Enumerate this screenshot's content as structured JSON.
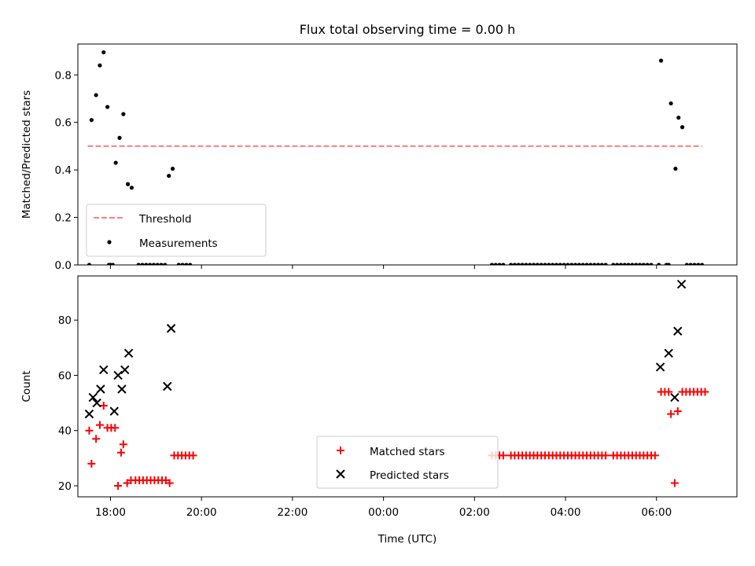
{
  "chart_data": [
    {
      "type": "scatter",
      "title": "Flux total observing time = 0.00 h",
      "xlabel": "",
      "ylabel": "Matched/Predicted stars",
      "xlim": [
        "17:17",
        "07:46"
      ],
      "ylim": [
        0,
        0.93
      ],
      "yticks": [
        0.0,
        0.2,
        0.4,
        0.6,
        0.8
      ],
      "ytick_labels": [
        "0.0",
        "0.2",
        "0.4",
        "0.6",
        "0.8"
      ],
      "legend": {
        "placement": "lower-left",
        "entries": [
          "Threshold",
          "Measurements"
        ]
      },
      "threshold": {
        "name": "Threshold",
        "y": 0.5,
        "x_start": "17:30",
        "x_end": "07:00",
        "color": "#ff7f7f"
      },
      "series": [
        {
          "name": "Measurements",
          "color": "#000000",
          "marker": "dot",
          "points": [
            [
              "17:32",
              0.0
            ],
            [
              "17:35",
              0.61
            ],
            [
              "17:41",
              0.715
            ],
            [
              "17:46",
              0.84
            ],
            [
              "17:51",
              0.895
            ],
            [
              "17:56",
              0.665
            ],
            [
              "17:58",
              0.0
            ],
            [
              "18:00",
              0.0
            ],
            [
              "18:03",
              0.0
            ],
            [
              "18:07",
              0.43
            ],
            [
              "18:12",
              0.535
            ],
            [
              "18:17",
              0.635
            ],
            [
              "18:23",
              0.34
            ],
            [
              "18:28",
              0.325
            ],
            [
              "18:37",
              0.0
            ],
            [
              "18:42",
              0.0
            ],
            [
              "18:47",
              0.0
            ],
            [
              "18:52",
              0.0
            ],
            [
              "18:57",
              0.0
            ],
            [
              "19:02",
              0.0
            ],
            [
              "19:07",
              0.0
            ],
            [
              "19:12",
              0.0
            ],
            [
              "19:17",
              0.375
            ],
            [
              "19:22",
              0.405
            ],
            [
              "19:30",
              0.0
            ],
            [
              "19:35",
              0.0
            ],
            [
              "19:40",
              0.0
            ],
            [
              "19:45",
              0.0
            ],
            [
              "02:23",
              0.0
            ],
            [
              "02:28",
              0.0
            ],
            [
              "02:33",
              0.0
            ],
            [
              "02:38",
              0.0
            ],
            [
              "02:48",
              0.0
            ],
            [
              "02:53",
              0.0
            ],
            [
              "02:58",
              0.0
            ],
            [
              "03:03",
              0.0
            ],
            [
              "03:08",
              0.0
            ],
            [
              "03:13",
              0.0
            ],
            [
              "03:18",
              0.0
            ],
            [
              "03:23",
              0.0
            ],
            [
              "03:28",
              0.0
            ],
            [
              "03:33",
              0.0
            ],
            [
              "03:38",
              0.0
            ],
            [
              "03:43",
              0.0
            ],
            [
              "03:48",
              0.0
            ],
            [
              "03:53",
              0.0
            ],
            [
              "03:58",
              0.0
            ],
            [
              "04:03",
              0.0
            ],
            [
              "04:08",
              0.0
            ],
            [
              "04:13",
              0.0
            ],
            [
              "04:18",
              0.0
            ],
            [
              "04:23",
              0.0
            ],
            [
              "04:28",
              0.0
            ],
            [
              "04:33",
              0.0
            ],
            [
              "04:38",
              0.0
            ],
            [
              "04:43",
              0.0
            ],
            [
              "04:48",
              0.0
            ],
            [
              "04:53",
              0.0
            ],
            [
              "05:03",
              0.0
            ],
            [
              "05:08",
              0.0
            ],
            [
              "05:13",
              0.0
            ],
            [
              "05:18",
              0.0
            ],
            [
              "05:23",
              0.0
            ],
            [
              "05:28",
              0.0
            ],
            [
              "05:33",
              0.0
            ],
            [
              "05:38",
              0.0
            ],
            [
              "05:43",
              0.0
            ],
            [
              "05:48",
              0.0
            ],
            [
              "05:53",
              0.0
            ],
            [
              "06:03",
              0.0
            ],
            [
              "06:06",
              0.86
            ],
            [
              "06:13",
              0.0
            ],
            [
              "06:16",
              0.0
            ],
            [
              "06:19",
              0.68
            ],
            [
              "06:25",
              0.405
            ],
            [
              "06:29",
              0.62
            ],
            [
              "06:34",
              0.58
            ],
            [
              "06:40",
              0.0
            ],
            [
              "06:45",
              0.0
            ],
            [
              "06:50",
              0.0
            ],
            [
              "06:55",
              0.0
            ],
            [
              "07:00",
              0.0
            ]
          ]
        }
      ]
    },
    {
      "type": "scatter",
      "title": "",
      "xlabel": "Time (UTC)",
      "ylabel": "Count",
      "xlim": [
        "17:17",
        "07:46"
      ],
      "ylim": [
        16,
        96
      ],
      "yticks": [
        20,
        40,
        60,
        80
      ],
      "ytick_labels": [
        "20",
        "40",
        "60",
        "80"
      ],
      "xticks": [
        "18:00",
        "20:00",
        "22:00",
        "00:00",
        "02:00",
        "04:00",
        "06:00"
      ],
      "legend": {
        "placement": "lower-center",
        "entries": [
          "Matched stars",
          "Predicted stars"
        ]
      },
      "series": [
        {
          "name": "Matched stars",
          "color": "#ff0000",
          "marker": "plus",
          "points": [
            [
              "17:32",
              40
            ],
            [
              "17:35",
              28
            ],
            [
              "17:41",
              37
            ],
            [
              "17:46",
              42
            ],
            [
              "17:51",
              49
            ],
            [
              "17:56",
              41
            ],
            [
              "18:01",
              41
            ],
            [
              "18:06",
              41
            ],
            [
              "18:10",
              20
            ],
            [
              "18:14",
              32
            ],
            [
              "18:17",
              35
            ],
            [
              "18:22",
              21
            ],
            [
              "18:27",
              22
            ],
            [
              "18:33",
              22
            ],
            [
              "18:38",
              22
            ],
            [
              "18:43",
              22
            ],
            [
              "18:48",
              22
            ],
            [
              "18:53",
              22
            ],
            [
              "18:58",
              22
            ],
            [
              "19:03",
              22
            ],
            [
              "19:08",
              22
            ],
            [
              "19:13",
              22
            ],
            [
              "19:18",
              21
            ],
            [
              "19:24",
              31
            ],
            [
              "19:29",
              31
            ],
            [
              "19:34",
              31
            ],
            [
              "19:39",
              31
            ],
            [
              "19:44",
              31
            ],
            [
              "19:49",
              31
            ],
            [
              "02:23",
              31
            ],
            [
              "02:28",
              31
            ],
            [
              "02:33",
              31
            ],
            [
              "02:38",
              31
            ],
            [
              "02:48",
              31
            ],
            [
              "02:53",
              31
            ],
            [
              "02:58",
              31
            ],
            [
              "03:03",
              31
            ],
            [
              "03:08",
              31
            ],
            [
              "03:13",
              31
            ],
            [
              "03:18",
              31
            ],
            [
              "03:23",
              31
            ],
            [
              "03:28",
              31
            ],
            [
              "03:33",
              31
            ],
            [
              "03:38",
              31
            ],
            [
              "03:43",
              31
            ],
            [
              "03:48",
              31
            ],
            [
              "03:53",
              31
            ],
            [
              "03:58",
              31
            ],
            [
              "04:03",
              31
            ],
            [
              "04:08",
              31
            ],
            [
              "04:13",
              31
            ],
            [
              "04:18",
              31
            ],
            [
              "04:23",
              31
            ],
            [
              "04:28",
              31
            ],
            [
              "04:33",
              31
            ],
            [
              "04:38",
              31
            ],
            [
              "04:43",
              31
            ],
            [
              "04:48",
              31
            ],
            [
              "04:53",
              31
            ],
            [
              "05:03",
              31
            ],
            [
              "05:08",
              31
            ],
            [
              "05:13",
              31
            ],
            [
              "05:18",
              31
            ],
            [
              "05:23",
              31
            ],
            [
              "05:28",
              31
            ],
            [
              "05:33",
              31
            ],
            [
              "05:38",
              31
            ],
            [
              "05:43",
              31
            ],
            [
              "05:48",
              31
            ],
            [
              "05:53",
              31
            ],
            [
              "05:58",
              31
            ],
            [
              "06:06",
              54
            ],
            [
              "06:11",
              54
            ],
            [
              "06:16",
              54
            ],
            [
              "06:19",
              46
            ],
            [
              "06:24",
              21
            ],
            [
              "06:28",
              47
            ],
            [
              "06:34",
              54
            ],
            [
              "06:39",
              54
            ],
            [
              "06:44",
              54
            ],
            [
              "06:49",
              54
            ],
            [
              "06:54",
              54
            ],
            [
              "06:59",
              54
            ],
            [
              "07:04",
              54
            ]
          ]
        },
        {
          "name": "Predicted stars",
          "color": "#000000",
          "marker": "cross",
          "points": [
            [
              "17:32",
              46
            ],
            [
              "17:37",
              52
            ],
            [
              "17:42",
              50
            ],
            [
              "17:47",
              55
            ],
            [
              "17:51",
              62
            ],
            [
              "18:05",
              47
            ],
            [
              "18:10",
              60
            ],
            [
              "18:15",
              55
            ],
            [
              "18:19",
              62
            ],
            [
              "18:24",
              68
            ],
            [
              "19:15",
              56
            ],
            [
              "19:20",
              77
            ],
            [
              "06:05",
              63
            ],
            [
              "06:16",
              68
            ],
            [
              "06:24",
              52
            ],
            [
              "06:28",
              76
            ],
            [
              "06:33",
              93
            ]
          ]
        }
      ]
    }
  ]
}
